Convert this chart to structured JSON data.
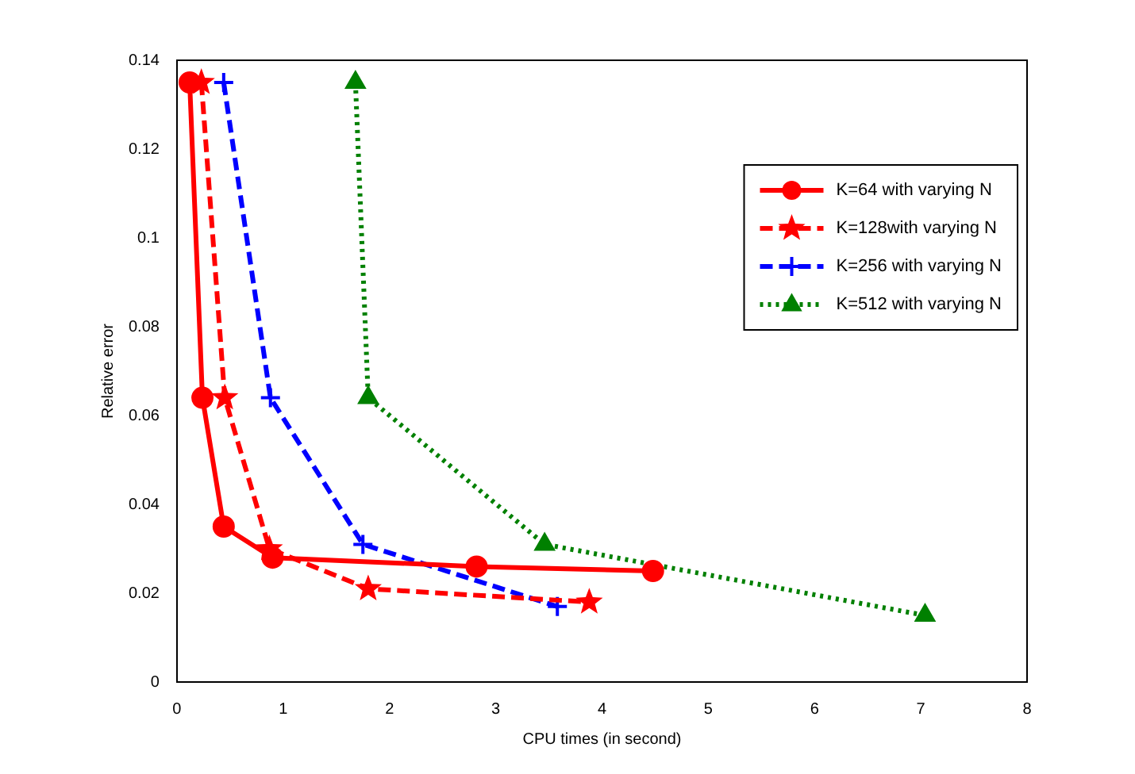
{
  "chart_data": {
    "type": "line",
    "xlabel": "CPU times (in second)",
    "ylabel": "Relative error",
    "xlim": [
      0,
      8
    ],
    "xticks": [
      0,
      1,
      2,
      3,
      4,
      5,
      6,
      7,
      8
    ],
    "ylim": [
      0,
      0.14
    ],
    "yticks": [
      0,
      0.02,
      0.04,
      0.06,
      0.08,
      0.1,
      0.12,
      0.14
    ],
    "grid": false,
    "legend": "top right",
    "series": [
      {
        "name": "K=64 with varying N",
        "color": "#ff0000",
        "marker": "circle",
        "line_style": "solid",
        "x": [
          0.12,
          0.24,
          0.44,
          0.9,
          2.82,
          4.48
        ],
        "values": [
          0.135,
          0.064,
          0.035,
          0.028,
          0.026,
          0.025
        ]
      },
      {
        "name": "K=128with varying N",
        "color": "#ff0000",
        "marker": "star",
        "line_style": "dashed",
        "x": [
          0.23,
          0.45,
          0.87,
          1.8,
          3.88
        ],
        "values": [
          0.135,
          0.064,
          0.03,
          0.021,
          0.018
        ]
      },
      {
        "name": "K=256 with varying N",
        "color": "#0000ff",
        "marker": "cross",
        "line_style": "dashed",
        "x": [
          0.44,
          0.88,
          1.75,
          3.58
        ],
        "values": [
          0.135,
          0.064,
          0.031,
          0.017
        ]
      },
      {
        "name": "K=512 with varying N",
        "color": "#008000",
        "marker": "triangle",
        "line_style": "dotted",
        "x": [
          1.68,
          1.8,
          3.46,
          7.04
        ],
        "values": [
          0.135,
          0.064,
          0.031,
          0.015
        ]
      }
    ]
  }
}
